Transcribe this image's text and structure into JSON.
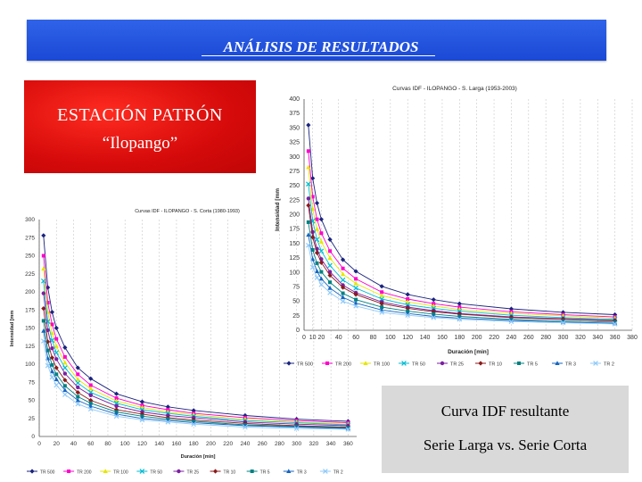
{
  "header": {
    "title": "ANÁLISIS DE RESULTADOS"
  },
  "station": {
    "line1": "ESTACIÓN PATRÓN",
    "line2": "“Ilopango”"
  },
  "caption": {
    "line1": "Curva IDF resultante",
    "line2": "Serie Larga vs. Serie Corta"
  },
  "colors": {
    "banner": "#2356e0",
    "station_box": "#e01414",
    "caption_box": "#d9d9d9"
  },
  "chart_data": [
    {
      "type": "line",
      "title": "Curvas IDF - ILOPANGO - S. Larga (1953-2003)",
      "xlabel": "Duración [min]",
      "ylabel": "Intensidad [mm",
      "xlim": [
        0,
        380
      ],
      "ylim": [
        0,
        400
      ],
      "xticks": [
        0,
        10,
        20,
        40,
        60,
        80,
        100,
        120,
        140,
        160,
        180,
        200,
        220,
        240,
        260,
        280,
        300,
        320,
        340,
        360,
        380
      ],
      "xtick_labels": [
        "0",
        "10",
        "20",
        "40",
        "60",
        "80",
        "100",
        "120",
        "140",
        "160",
        "180",
        "200",
        "220",
        "240",
        "260",
        "280",
        "300",
        "320",
        "340",
        "360",
        "380"
      ],
      "yticks": [
        0,
        25,
        50,
        75,
        100,
        125,
        150,
        175,
        200,
        225,
        250,
        275,
        300,
        325,
        350,
        375,
        400
      ],
      "grid": true,
      "legend_position": "bottom",
      "x": [
        5,
        10,
        15,
        20,
        30,
        45,
        60,
        90,
        120,
        150,
        180,
        240,
        300,
        360
      ],
      "series": [
        {
          "name": "TR 500",
          "color": "#1a237e",
          "values": [
            355,
            263,
            220,
            192,
            157,
            122,
            102,
            76,
            62,
            53,
            46,
            37,
            31,
            27
          ]
        },
        {
          "name": "TR 200",
          "color": "#ff00cc",
          "values": [
            310,
            231,
            192,
            168,
            137,
            107,
            89,
            66,
            54,
            46,
            40,
            32,
            27,
            23
          ]
        },
        {
          "name": "TR 100",
          "color": "#e6e600",
          "values": [
            282,
            210,
            175,
            153,
            125,
            97,
            81,
            60,
            49,
            42,
            36,
            29,
            25,
            21
          ]
        },
        {
          "name": "TR 50",
          "color": "#00bcd4",
          "values": [
            253,
            189,
            157,
            137,
            112,
            87,
            73,
            54,
            44,
            38,
            33,
            26,
            22,
            19
          ]
        },
        {
          "name": "TR 25",
          "color": "#7b1fa2",
          "values": [
            228,
            170,
            141,
            123,
            101,
            78,
            65,
            49,
            40,
            34,
            29,
            23,
            20,
            17
          ]
        },
        {
          "name": "TR 10",
          "color": "#8b1a1a",
          "values": [
            216,
            161,
            134,
            117,
            95,
            74,
            62,
            46,
            38,
            32,
            28,
            22,
            19,
            16
          ]
        },
        {
          "name": "TR 5",
          "color": "#008080",
          "values": [
            187,
            139,
            116,
            101,
            83,
            64,
            53,
            40,
            33,
            28,
            24,
            19,
            16,
            14
          ]
        },
        {
          "name": "TR 3",
          "color": "#1565c0",
          "values": [
            165,
            123,
            102,
            89,
            73,
            57,
            47,
            35,
            29,
            24,
            21,
            17,
            14,
            12
          ]
        },
        {
          "name": "TR 2",
          "color": "#90caf9",
          "values": [
            147,
            109,
            91,
            79,
            65,
            50,
            42,
            31,
            26,
            22,
            19,
            15,
            13,
            11
          ]
        }
      ]
    },
    {
      "type": "line",
      "title": "Curvas IDF - ILOPANGO - S. Corta (1980-1993)",
      "xlabel": "Duración [min]",
      "ylabel": "Intensidad [mm",
      "xlim": [
        0,
        370
      ],
      "ylim": [
        0,
        300
      ],
      "xticks": [
        0,
        20,
        40,
        60,
        80,
        100,
        120,
        140,
        160,
        180,
        200,
        220,
        240,
        260,
        280,
        300,
        320,
        340,
        360
      ],
      "yticks": [
        0,
        25,
        50,
        75,
        100,
        125,
        150,
        175,
        200,
        225,
        250,
        275,
        300
      ],
      "grid": true,
      "legend_position": "bottom",
      "x": [
        5,
        10,
        15,
        20,
        30,
        45,
        60,
        90,
        120,
        150,
        180,
        240,
        300,
        360
      ],
      "series": [
        {
          "name": "TR 500",
          "color": "#1a237e",
          "values": [
            278,
            206,
            172,
            150,
            123,
            95,
            80,
            59,
            48,
            41,
            36,
            29,
            24,
            21
          ]
        },
        {
          "name": "TR 200",
          "color": "#ff00cc",
          "values": [
            250,
            185,
            155,
            135,
            110,
            86,
            71,
            53,
            43,
            37,
            32,
            26,
            22,
            19
          ]
        },
        {
          "name": "TR 100",
          "color": "#e6e600",
          "values": [
            232,
            172,
            143,
            125,
            102,
            79,
            66,
            49,
            40,
            34,
            30,
            24,
            20,
            17
          ]
        },
        {
          "name": "TR 50",
          "color": "#00bcd4",
          "values": [
            215,
            159,
            133,
            116,
            95,
            74,
            61,
            46,
            37,
            32,
            28,
            22,
            19,
            16
          ]
        },
        {
          "name": "TR 25",
          "color": "#7b1fa2",
          "values": [
            198,
            147,
            122,
            107,
            87,
            68,
            57,
            42,
            34,
            29,
            26,
            20,
            17,
            15
          ]
        },
        {
          "name": "TR 10",
          "color": "#8b1a1a",
          "values": [
            177,
            131,
            109,
            95,
            78,
            61,
            50,
            37,
            31,
            26,
            23,
            18,
            15,
            13
          ]
        },
        {
          "name": "TR 5",
          "color": "#008080",
          "values": [
            160,
            119,
            99,
            86,
            70,
            55,
            46,
            34,
            28,
            24,
            21,
            16,
            14,
            12
          ]
        },
        {
          "name": "TR 3",
          "color": "#1565c0",
          "values": [
            146,
            108,
            90,
            79,
            64,
            50,
            42,
            31,
            25,
            22,
            19,
            15,
            13,
            11
          ]
        },
        {
          "name": "TR 2",
          "color": "#90caf9",
          "values": [
            132,
            98,
            82,
            71,
            58,
            45,
            38,
            28,
            23,
            20,
            17,
            13,
            11,
            10
          ]
        }
      ]
    }
  ]
}
